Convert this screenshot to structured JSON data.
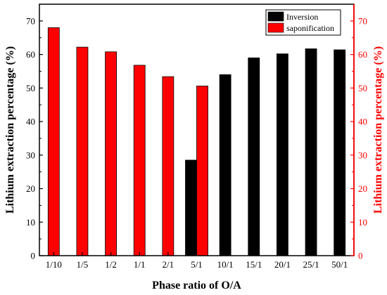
{
  "chart_data": {
    "type": "bar",
    "categories": [
      "1/10",
      "1/5",
      "1/2",
      "1/1",
      "2/1",
      "5/1",
      "10/1",
      "15/1",
      "20/1",
      "25/1",
      "50/1"
    ],
    "series": [
      {
        "name": "Inversion",
        "color": "#000000",
        "values": [
          null,
          null,
          null,
          null,
          null,
          28.5,
          54.0,
          59.0,
          60.2,
          61.7,
          61.4
        ]
      },
      {
        "name": "saponification",
        "color": "#ff0000",
        "values": [
          68.0,
          62.2,
          60.8,
          56.8,
          53.4,
          50.6,
          null,
          null,
          null,
          null,
          null
        ]
      }
    ],
    "xlabel": "Phase ratio of O/A",
    "ylabel": "Lithium extraction percentage (%)",
    "ylabel_right": "Lithium extraction percentage (%)",
    "ylim": [
      0,
      75
    ],
    "yticks": [
      0,
      10,
      20,
      30,
      40,
      50,
      60,
      70
    ],
    "right_axis_color": "#ff0000",
    "legend_position": "top-right",
    "grid": false
  }
}
